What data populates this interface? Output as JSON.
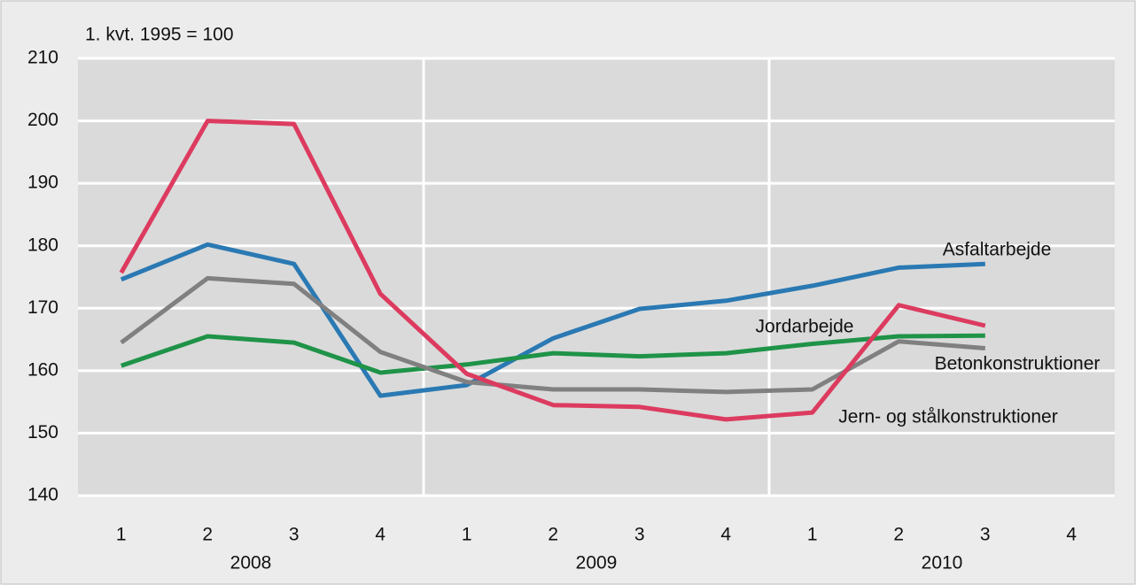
{
  "chart_data": {
    "type": "line",
    "annotation": "1. kvt. 1995 = 100",
    "categories": [
      "1",
      "2",
      "3",
      "4",
      "1",
      "2",
      "3",
      "4",
      "1",
      "2",
      "3",
      "4"
    ],
    "groups": [
      "2008",
      "2009",
      "2010"
    ],
    "ylim": [
      140,
      210
    ],
    "yticks": [
      140,
      150,
      160,
      170,
      180,
      190,
      200,
      210
    ],
    "grid": true,
    "series": [
      {
        "name": "Asfaltarbejde",
        "color": "#2a79b3",
        "values": [
          174.6,
          180.2,
          177.1,
          156.0,
          157.7,
          165.2,
          169.9,
          171.2,
          173.6,
          176.5,
          177.1,
          null
        ]
      },
      {
        "name": "Jordarbejde",
        "color": "#1f9348",
        "values": [
          160.8,
          165.5,
          164.5,
          159.7,
          161.0,
          162.8,
          162.3,
          162.8,
          164.3,
          165.5,
          165.6,
          null
        ]
      },
      {
        "name": "Betonkonstruktioner",
        "color": "#808080",
        "values": [
          164.5,
          174.8,
          173.9,
          163.0,
          158.2,
          157.0,
          157.0,
          156.6,
          157.0,
          164.7,
          163.6,
          null
        ]
      },
      {
        "name": "Jern- og stålkonstruktioner",
        "color": "#dc3b5f",
        "values": [
          175.7,
          200.0,
          199.5,
          172.3,
          159.5,
          154.5,
          154.2,
          152.2,
          153.3,
          170.5,
          167.2,
          null
        ]
      }
    ]
  }
}
